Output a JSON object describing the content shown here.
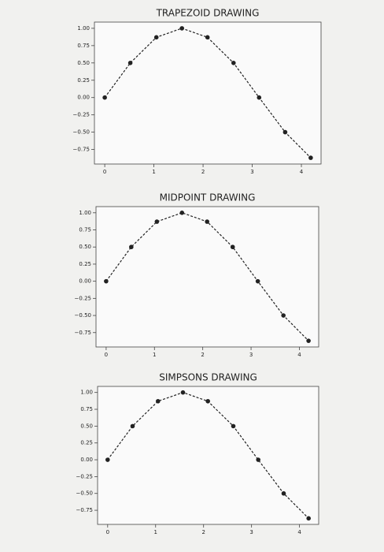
{
  "chart_data": [
    {
      "type": "line",
      "title": "TRAPEZOID DRAWING",
      "x": [
        0,
        0.52,
        1.05,
        1.57,
        2.09,
        2.62,
        3.14,
        3.67,
        4.19
      ],
      "series": [
        {
          "color": "#222222",
          "values": [
            0,
            0.5,
            0.87,
            1,
            0.87,
            0.5,
            0,
            -0.5,
            -0.87
          ]
        }
      ],
      "xlim": [
        -0.21,
        4.4
      ],
      "ylim": [
        -0.96,
        1.09
      ],
      "xticks": [
        0,
        1,
        2,
        3,
        4
      ],
      "yticks": [
        {
          "value": -0.75,
          "label": "−0.75"
        },
        {
          "value": -0.5,
          "label": "−0.50"
        },
        {
          "value": -0.25,
          "label": "−0.25"
        },
        {
          "value": 0,
          "label": "0.00"
        },
        {
          "value": 0.25,
          "label": "0.25"
        },
        {
          "value": 0.5,
          "label": "0.50"
        },
        {
          "value": 0.75,
          "label": "0.75"
        },
        {
          "value": 1,
          "label": "1.00"
        }
      ]
    },
    {
      "type": "line",
      "title": "MIDPOINT DRAWING",
      "x": [
        0,
        0.52,
        1.05,
        1.57,
        2.09,
        2.62,
        3.14,
        3.67,
        4.19
      ],
      "series": [
        {
          "color": "#222222",
          "values": [
            0,
            0.5,
            0.87,
            1,
            0.87,
            0.5,
            0,
            -0.5,
            -0.87
          ]
        }
      ],
      "xlim": [
        -0.21,
        4.4
      ],
      "ylim": [
        -0.96,
        1.09
      ],
      "xticks": [
        0,
        1,
        2,
        3,
        4
      ],
      "yticks": [
        {
          "value": -0.75,
          "label": "−0.75"
        },
        {
          "value": -0.5,
          "label": "−0.50"
        },
        {
          "value": -0.25,
          "label": "−0.25"
        },
        {
          "value": 0,
          "label": "0.00"
        },
        {
          "value": 0.25,
          "label": "0.25"
        },
        {
          "value": 0.5,
          "label": "0.50"
        },
        {
          "value": 0.75,
          "label": "0.75"
        },
        {
          "value": 1,
          "label": "1.00"
        }
      ]
    },
    {
      "type": "line",
      "title": "SIMPSONS DRAWING",
      "x": [
        0,
        0.52,
        1.05,
        1.57,
        2.09,
        2.62,
        3.14,
        3.67,
        4.19
      ],
      "series": [
        {
          "color": "#222222",
          "values": [
            0,
            0.5,
            0.87,
            1,
            0.87,
            0.5,
            0,
            -0.5,
            -0.87
          ]
        }
      ],
      "xlim": [
        -0.21,
        4.4
      ],
      "ylim": [
        -0.96,
        1.09
      ],
      "xticks": [
        0,
        1,
        2,
        3,
        4
      ],
      "yticks": [
        {
          "value": -0.75,
          "label": "−0.75"
        },
        {
          "value": -0.5,
          "label": "−0.50"
        },
        {
          "value": -0.25,
          "label": "−0.25"
        },
        {
          "value": 0,
          "label": "0.00"
        },
        {
          "value": 0.25,
          "label": "0.25"
        },
        {
          "value": 0.5,
          "label": "0.50"
        },
        {
          "value": 0.75,
          "label": "0.75"
        },
        {
          "value": 1,
          "label": "1.00"
        }
      ]
    }
  ]
}
